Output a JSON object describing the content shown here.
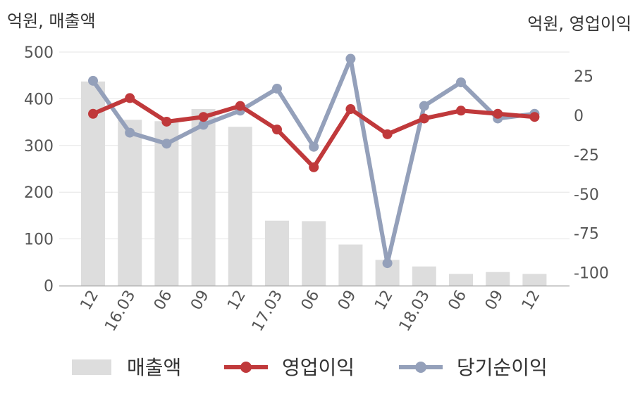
{
  "chart_data": {
    "type": "bar+line",
    "left_axis_label": "억원, 매출액",
    "right_axis_label": "억원, 영업이익",
    "categories": [
      "12",
      "16.03",
      "06",
      "09",
      "12",
      "17.03",
      "06",
      "09",
      "12",
      "18.03",
      "06",
      "09",
      "12"
    ],
    "left_ylim": [
      0,
      500
    ],
    "left_ticks": [
      0,
      100,
      200,
      300,
      400,
      500
    ],
    "right_ylim": [
      -110,
      40
    ],
    "right_ticks": [
      25,
      0,
      -25,
      -50,
      -75,
      -100
    ],
    "grid": true,
    "legend_position": "bottom",
    "series": [
      {
        "name": "매출액",
        "type": "bar",
        "axis": "left",
        "color": "#dddddd",
        "values": [
          437,
          355,
          352,
          378,
          340,
          139,
          138,
          88,
          55,
          41,
          25,
          29,
          25
        ]
      },
      {
        "name": "영업이익",
        "type": "line",
        "axis": "right",
        "color": "#c0393b",
        "values": [
          1,
          11,
          -4,
          -1,
          6,
          -9,
          -33,
          4,
          -12,
          -2,
          3,
          1,
          -1
        ]
      },
      {
        "name": "당기순이익",
        "type": "line",
        "axis": "right",
        "color": "#94a0ba",
        "values": [
          22,
          -11,
          -18,
          -6,
          3,
          17,
          -20,
          36,
          -94,
          6,
          21,
          -2,
          1
        ]
      }
    ]
  }
}
